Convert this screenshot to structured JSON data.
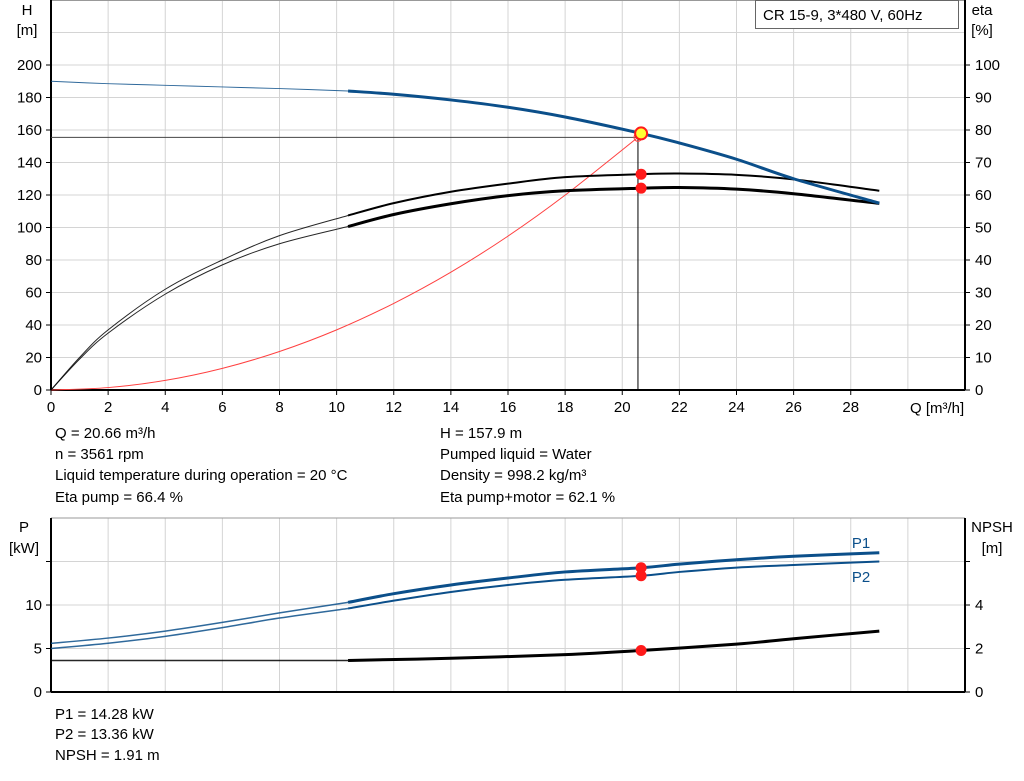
{
  "chart_data": [
    {
      "type": "line",
      "title_box": "CR 15-9, 3*480 V, 60Hz",
      "xlabel": "Q [m³/h]",
      "ylabel": [
        "H",
        "[m]"
      ],
      "y2label": [
        "eta",
        "[%]"
      ],
      "xlim": [
        0,
        32
      ],
      "ylim": [
        0,
        240
      ],
      "y2lim": [
        0,
        120
      ],
      "xticks": [
        0,
        2,
        4,
        6,
        8,
        10,
        12,
        14,
        16,
        18,
        20,
        22,
        24,
        26,
        28
      ],
      "yticks": [
        0,
        20,
        40,
        60,
        80,
        100,
        120,
        140,
        160,
        180,
        200
      ],
      "y2ticks": [
        0,
        10,
        20,
        30,
        40,
        50,
        60,
        70,
        80,
        90,
        100
      ],
      "grid": true,
      "duty_point": {
        "Q": 20.66,
        "H": 157.9,
        "eta_pump": 66.4,
        "eta_pump_motor": 62.1
      },
      "requested_point": {
        "Q": 20.55,
        "H": 155.5
      },
      "colors": {
        "head": "#0b4f8a",
        "eta": "#000000",
        "system": "#ff4040",
        "marker": "#ff1a1a",
        "duty_fill": "#ffff33"
      },
      "series": [
        {
          "key": "head",
          "axis": "left",
          "points": [
            [
              0,
              190
            ],
            [
              2,
              188.5
            ],
            [
              4,
              187.5
            ],
            [
              6,
              186.5
            ],
            [
              8,
              185.5
            ],
            [
              10.4,
              184
            ],
            [
              12,
              182
            ],
            [
              14,
              178.5
            ],
            [
              16,
              174
            ],
            [
              18,
              168
            ],
            [
              20.66,
              157.9
            ],
            [
              22,
              152
            ],
            [
              24,
              142
            ],
            [
              26,
              130
            ],
            [
              29,
              115
            ]
          ]
        },
        {
          "key": "eta_pump",
          "axis": "right",
          "points": [
            [
              0,
              0
            ],
            [
              1,
              10
            ],
            [
              2,
              18.5
            ],
            [
              4,
              31
            ],
            [
              6,
              40
            ],
            [
              8,
              47.5
            ],
            [
              10.4,
              53.7
            ],
            [
              12,
              57.5
            ],
            [
              14,
              61
            ],
            [
              16,
              63.5
            ],
            [
              18,
              65.5
            ],
            [
              20.66,
              66.4
            ],
            [
              22,
              66.6
            ],
            [
              24,
              66.2
            ],
            [
              26,
              64.8
            ],
            [
              29,
              61.3
            ]
          ]
        },
        {
          "key": "eta_pump_motor",
          "axis": "right",
          "points": [
            [
              0,
              0
            ],
            [
              1,
              9.5
            ],
            [
              2,
              17.5
            ],
            [
              4,
              29.5
            ],
            [
              6,
              38.5
            ],
            [
              8,
              45
            ],
            [
              10.4,
              50.3
            ],
            [
              12,
              54
            ],
            [
              14,
              57.3
            ],
            [
              16,
              59.8
            ],
            [
              18,
              61.3
            ],
            [
              20.66,
              62.1
            ],
            [
              22,
              62.3
            ],
            [
              24,
              61.8
            ],
            [
              26,
              60.4
            ],
            [
              29,
              57.4
            ]
          ]
        },
        {
          "key": "system",
          "axis": "left",
          "points": [
            [
              0,
              0
            ],
            [
              2,
              1.5
            ],
            [
              4,
              5.9
            ],
            [
              6,
              13.3
            ],
            [
              8,
              23.7
            ],
            [
              10,
              37
            ],
            [
              12,
              53.3
            ],
            [
              14,
              72.5
            ],
            [
              16,
              94.7
            ],
            [
              18,
              119.9
            ],
            [
              20.55,
              155.5
            ]
          ]
        }
      ],
      "operating_range_start_Q": 10.4
    },
    {
      "type": "line",
      "ylabel": [
        "P",
        "[kW]"
      ],
      "y2label": [
        "NPSH",
        "[m]"
      ],
      "xlim": [
        0,
        32
      ],
      "ylim": [
        0,
        20
      ],
      "y2lim": [
        0,
        8
      ],
      "yticks": [
        0,
        5,
        10
      ],
      "y2ticks": [
        0,
        2,
        4
      ],
      "grid": true,
      "series": [
        {
          "key": "P1",
          "name": "P1",
          "axis": "left",
          "points": [
            [
              0,
              5.6
            ],
            [
              2,
              6.2
            ],
            [
              4,
              7.0
            ],
            [
              6,
              8.0
            ],
            [
              8,
              9.1
            ],
            [
              10.4,
              10.3
            ],
            [
              12,
              11.3
            ],
            [
              14,
              12.3
            ],
            [
              16,
              13.1
            ],
            [
              18,
              13.8
            ],
            [
              20.66,
              14.28
            ],
            [
              22,
              14.7
            ],
            [
              24,
              15.2
            ],
            [
              26,
              15.6
            ],
            [
              29,
              16.0
            ]
          ]
        },
        {
          "key": "P2",
          "name": "P2",
          "axis": "left",
          "points": [
            [
              0,
              5.0
            ],
            [
              2,
              5.6
            ],
            [
              4,
              6.4
            ],
            [
              6,
              7.4
            ],
            [
              8,
              8.5
            ],
            [
              10.4,
              9.6
            ],
            [
              12,
              10.5
            ],
            [
              14,
              11.5
            ],
            [
              16,
              12.3
            ],
            [
              18,
              12.9
            ],
            [
              20.66,
              13.36
            ],
            [
              22,
              13.8
            ],
            [
              24,
              14.3
            ],
            [
              26,
              14.6
            ],
            [
              29,
              15.0
            ]
          ]
        },
        {
          "key": "NPSH",
          "axis": "right",
          "points": [
            [
              0,
              1.45
            ],
            [
              10.4,
              1.45
            ],
            [
              14,
              1.55
            ],
            [
              18,
              1.72
            ],
            [
              20.66,
              1.91
            ],
            [
              24,
              2.2
            ],
            [
              26,
              2.45
            ],
            [
              29,
              2.8
            ]
          ]
        }
      ],
      "duty_Q": 20.66,
      "duty_values": {
        "P1": 14.28,
        "P2": 13.36,
        "NPSH": 1.91
      }
    }
  ],
  "info_left": [
    "Q = 20.66 m³/h",
    "n = 3561 rpm",
    "Liquid temperature during operation = 20 °C",
    "Eta pump = 66.4 %"
  ],
  "info_right": [
    "H = 157.9 m",
    "Pumped liquid = Water",
    "Density = 998.2 kg/m³",
    "Eta pump+motor = 62.1 %"
  ],
  "info_bottom": [
    "P1 = 14.28 kW",
    "P2 = 13.36 kW",
    "NPSH = 1.91 m"
  ]
}
